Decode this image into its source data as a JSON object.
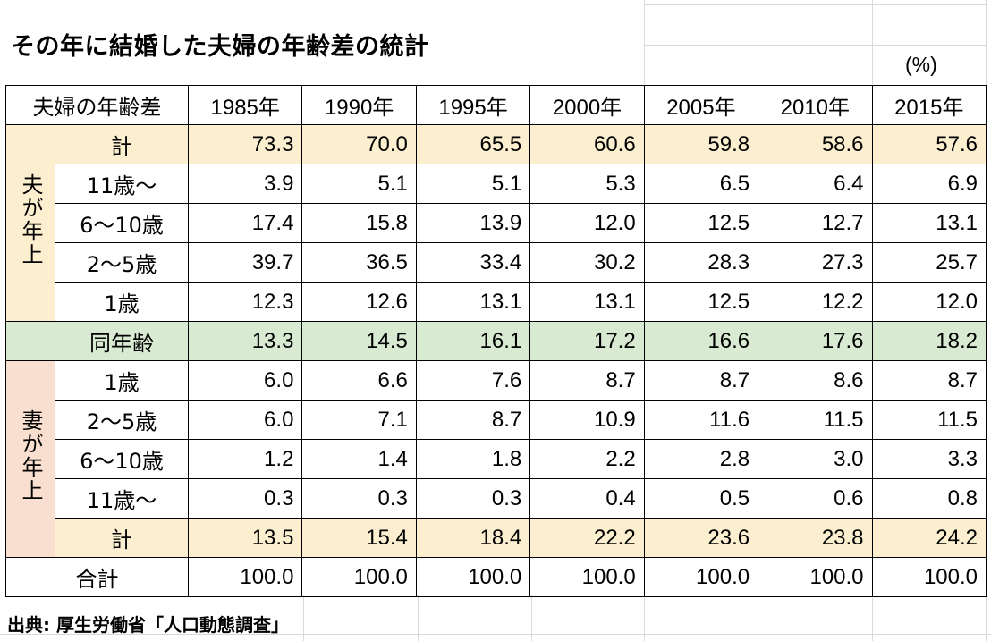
{
  "title": "その年に結婚した夫婦の年齢差の統計",
  "unit": "(%)",
  "source": "出典: 厚生労働省「人口動態調査」",
  "header": {
    "label": "夫婦の年齢差",
    "years": [
      "1985年",
      "1990年",
      "1995年",
      "2000年",
      "2005年",
      "2010年",
      "2015年"
    ]
  },
  "husband_older": {
    "side_label": "夫が年上",
    "rows": [
      {
        "label": "計",
        "values": [
          "73.3",
          "70.0",
          "65.5",
          "60.6",
          "59.8",
          "58.6",
          "57.6"
        ]
      },
      {
        "label": "11歳～",
        "values": [
          "3.9",
          "5.1",
          "5.1",
          "5.3",
          "6.5",
          "6.4",
          "6.9"
        ]
      },
      {
        "label": "6～10歳",
        "values": [
          "17.4",
          "15.8",
          "13.9",
          "12.0",
          "12.5",
          "12.7",
          "13.1"
        ]
      },
      {
        "label": "2～5歳",
        "values": [
          "39.7",
          "36.5",
          "33.4",
          "30.2",
          "28.3",
          "27.3",
          "25.7"
        ]
      },
      {
        "label": "1歳",
        "values": [
          "12.3",
          "12.6",
          "13.1",
          "13.1",
          "12.5",
          "12.2",
          "12.0"
        ]
      }
    ]
  },
  "same_age": {
    "label": "同年齢",
    "values": [
      "13.3",
      "14.5",
      "16.1",
      "17.2",
      "16.6",
      "17.6",
      "18.2"
    ]
  },
  "wife_older": {
    "side_label": "妻が年上",
    "rows": [
      {
        "label": "1歳",
        "values": [
          "6.0",
          "6.6",
          "7.6",
          "8.7",
          "8.7",
          "8.6",
          "8.7"
        ]
      },
      {
        "label": "2～5歳",
        "values": [
          "6.0",
          "7.1",
          "8.7",
          "10.9",
          "11.6",
          "11.5",
          "11.5"
        ]
      },
      {
        "label": "6～10歳",
        "values": [
          "1.2",
          "1.4",
          "1.8",
          "2.2",
          "2.8",
          "3.0",
          "3.3"
        ]
      },
      {
        "label": "11歳～",
        "values": [
          "0.3",
          "0.3",
          "0.3",
          "0.4",
          "0.5",
          "0.6",
          "0.8"
        ]
      },
      {
        "label": "計",
        "values": [
          "13.5",
          "15.4",
          "18.4",
          "22.2",
          "23.6",
          "23.8",
          "24.2"
        ]
      }
    ]
  },
  "total": {
    "label": "合計",
    "values": [
      "100.0",
      "100.0",
      "100.0",
      "100.0",
      "100.0",
      "100.0",
      "100.0"
    ]
  },
  "colors": {
    "subtotal": "#fcefd0",
    "same_age": "#d9ead3",
    "wife_side": "#f9dfcf",
    "grid": "#d9d9d9"
  }
}
